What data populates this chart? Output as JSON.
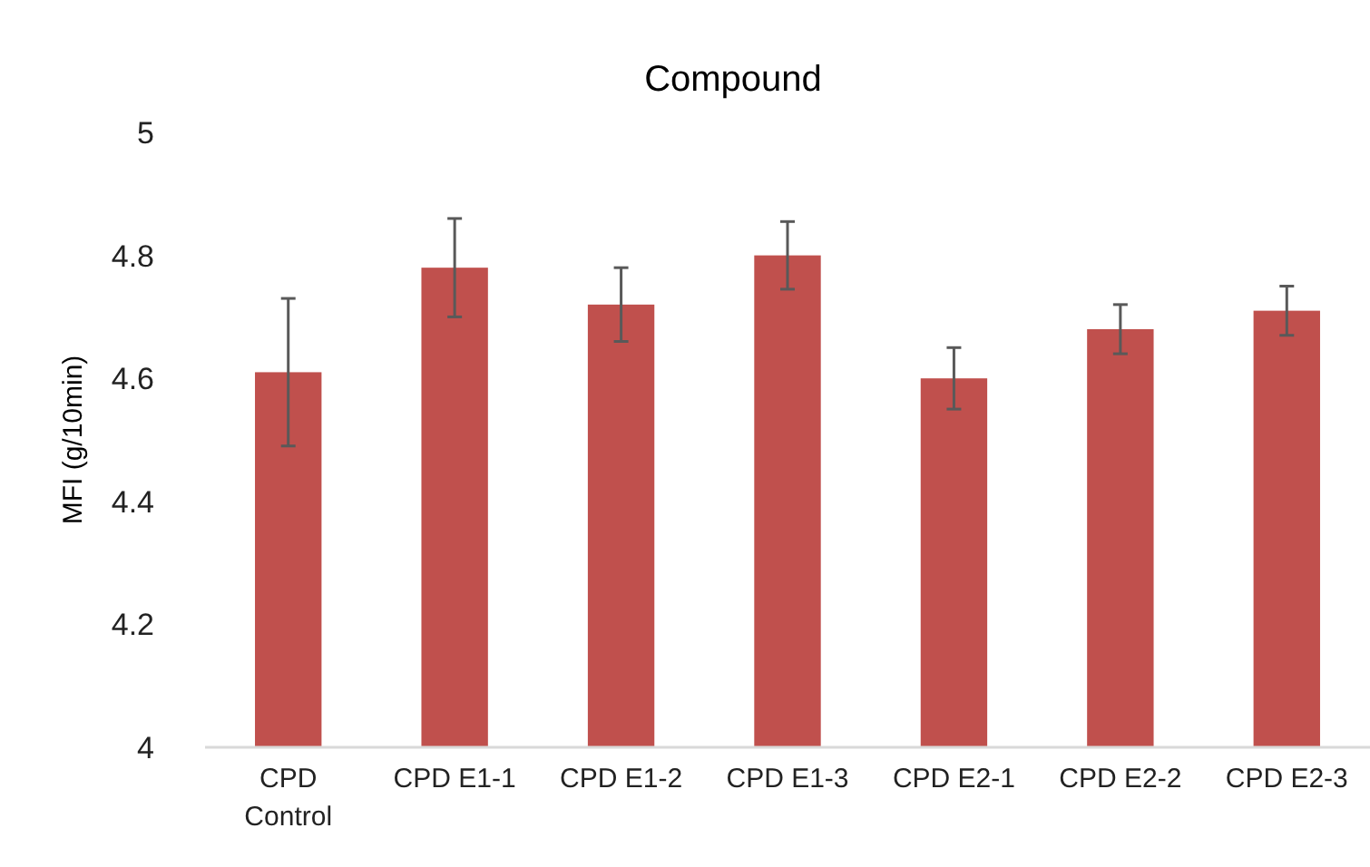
{
  "chart_data": {
    "type": "bar",
    "title": "Compound",
    "ylabel": "MFI (g/10min)",
    "categories": [
      "CPD Control",
      "CPD E1-1",
      "CPD E1-2",
      "CPD E1-3",
      "CPD E2-1",
      "CPD E2-2",
      "CPD E2-3"
    ],
    "values": [
      4.61,
      4.78,
      4.72,
      4.8,
      4.6,
      4.68,
      4.71
    ],
    "errors": [
      0.12,
      0.08,
      0.06,
      0.055,
      0.05,
      0.04,
      0.04
    ],
    "color": "#c0504d",
    "ylim": [
      4,
      5
    ],
    "yticks": [
      4,
      4.2,
      4.4,
      4.6,
      4.8,
      5
    ],
    "grid": false
  }
}
